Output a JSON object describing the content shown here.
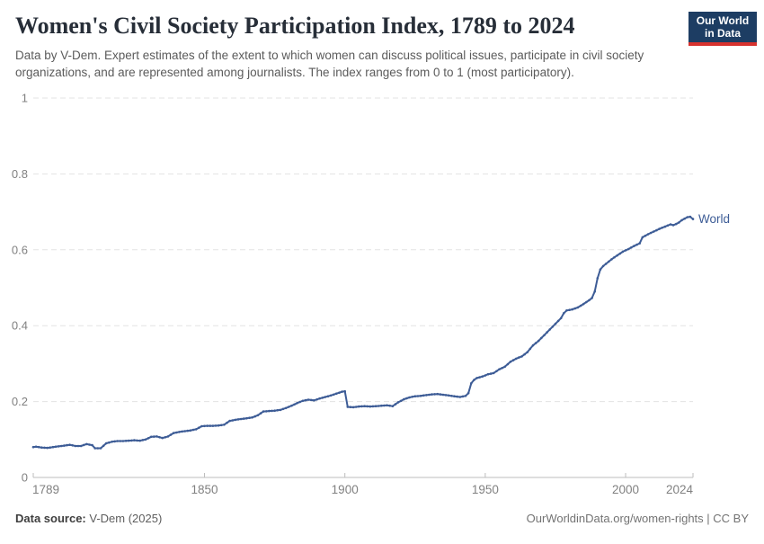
{
  "header": {
    "title": "Women's Civil Society Participation Index, 1789 to 2024",
    "subtitle": "Data by V-Dem. Expert estimates of the extent to which women can discuss political issues, participate in civil society organizations, and are represented among journalists. The index ranges from 0 to 1 (most participatory).",
    "logo_line1": "Our World",
    "logo_line2": "in Data"
  },
  "footer": {
    "source_label": "Data source:",
    "source_value": "V-Dem (2025)",
    "right_text": "OurWorldinData.org/women-rights | CC BY"
  },
  "colors": {
    "series_blue": "#3d5c96",
    "grid": "#e3e3e3",
    "axis": "#bdbdbd",
    "axis_label": "#818181",
    "logo_navy": "#1d3d63",
    "logo_red": "#d7322e"
  },
  "chart_data": {
    "type": "line",
    "title": "Women's Civil Society Participation Index, 1789 to 2024",
    "xlabel": "",
    "ylabel": "",
    "grid": "horizontal-dashed",
    "legend_position": "end-of-line",
    "x_axis": {
      "min": 1789,
      "max": 2024,
      "ticks": [
        1789,
        1850,
        1900,
        1950,
        2000,
        2024
      ],
      "tick_labels": [
        "1789",
        "1850",
        "1900",
        "1950",
        "2000",
        "2024"
      ]
    },
    "y_axis": {
      "min": 0,
      "max": 1,
      "ticks": [
        0,
        0.2,
        0.4,
        0.6,
        0.8,
        1
      ],
      "tick_labels": [
        "0",
        "0.2",
        "0.4",
        "0.6",
        "0.8",
        "1"
      ]
    },
    "series": [
      {
        "name": "World",
        "color": "#3d5c96",
        "points": [
          [
            1789,
            0.08
          ],
          [
            1790,
            0.081
          ],
          [
            1792,
            0.079
          ],
          [
            1794,
            0.078
          ],
          [
            1796,
            0.08
          ],
          [
            1798,
            0.082
          ],
          [
            1800,
            0.084
          ],
          [
            1802,
            0.086
          ],
          [
            1804,
            0.083
          ],
          [
            1806,
            0.083
          ],
          [
            1808,
            0.088
          ],
          [
            1810,
            0.085
          ],
          [
            1811,
            0.077
          ],
          [
            1813,
            0.077
          ],
          [
            1815,
            0.09
          ],
          [
            1817,
            0.094
          ],
          [
            1819,
            0.096
          ],
          [
            1821,
            0.096
          ],
          [
            1823,
            0.097
          ],
          [
            1825,
            0.098
          ],
          [
            1827,
            0.097
          ],
          [
            1829,
            0.1
          ],
          [
            1831,
            0.107
          ],
          [
            1833,
            0.108
          ],
          [
            1835,
            0.104
          ],
          [
            1837,
            0.108
          ],
          [
            1839,
            0.117
          ],
          [
            1841,
            0.12
          ],
          [
            1843,
            0.122
          ],
          [
            1845,
            0.124
          ],
          [
            1847,
            0.127
          ],
          [
            1849,
            0.135
          ],
          [
            1851,
            0.136
          ],
          [
            1853,
            0.136
          ],
          [
            1855,
            0.137
          ],
          [
            1857,
            0.139
          ],
          [
            1859,
            0.149
          ],
          [
            1861,
            0.152
          ],
          [
            1863,
            0.154
          ],
          [
            1865,
            0.156
          ],
          [
            1867,
            0.158
          ],
          [
            1869,
            0.164
          ],
          [
            1871,
            0.174
          ],
          [
            1873,
            0.175
          ],
          [
            1875,
            0.176
          ],
          [
            1877,
            0.178
          ],
          [
            1879,
            0.183
          ],
          [
            1881,
            0.189
          ],
          [
            1883,
            0.196
          ],
          [
            1885,
            0.202
          ],
          [
            1887,
            0.205
          ],
          [
            1889,
            0.203
          ],
          [
            1891,
            0.208
          ],
          [
            1893,
            0.212
          ],
          [
            1895,
            0.216
          ],
          [
            1897,
            0.221
          ],
          [
            1899,
            0.226
          ],
          [
            1900,
            0.227
          ],
          [
            1901,
            0.186
          ],
          [
            1903,
            0.185
          ],
          [
            1905,
            0.187
          ],
          [
            1907,
            0.188
          ],
          [
            1909,
            0.187
          ],
          [
            1911,
            0.188
          ],
          [
            1913,
            0.189
          ],
          [
            1915,
            0.19
          ],
          [
            1917,
            0.188
          ],
          [
            1919,
            0.198
          ],
          [
            1921,
            0.206
          ],
          [
            1923,
            0.211
          ],
          [
            1925,
            0.214
          ],
          [
            1927,
            0.215
          ],
          [
            1929,
            0.217
          ],
          [
            1931,
            0.219
          ],
          [
            1933,
            0.22
          ],
          [
            1935,
            0.218
          ],
          [
            1937,
            0.216
          ],
          [
            1939,
            0.214
          ],
          [
            1941,
            0.212
          ],
          [
            1943,
            0.215
          ],
          [
            1944,
            0.222
          ],
          [
            1945,
            0.248
          ],
          [
            1946,
            0.257
          ],
          [
            1947,
            0.262
          ],
          [
            1949,
            0.266
          ],
          [
            1951,
            0.272
          ],
          [
            1953,
            0.275
          ],
          [
            1955,
            0.285
          ],
          [
            1957,
            0.292
          ],
          [
            1959,
            0.305
          ],
          [
            1961,
            0.313
          ],
          [
            1963,
            0.319
          ],
          [
            1965,
            0.33
          ],
          [
            1967,
            0.348
          ],
          [
            1969,
            0.36
          ],
          [
            1971,
            0.375
          ],
          [
            1973,
            0.39
          ],
          [
            1975,
            0.405
          ],
          [
            1977,
            0.42
          ],
          [
            1978,
            0.433
          ],
          [
            1979,
            0.44
          ],
          [
            1981,
            0.443
          ],
          [
            1983,
            0.448
          ],
          [
            1985,
            0.457
          ],
          [
            1987,
            0.467
          ],
          [
            1988,
            0.473
          ],
          [
            1989,
            0.49
          ],
          [
            1990,
            0.525
          ],
          [
            1991,
            0.548
          ],
          [
            1992,
            0.557
          ],
          [
            1993,
            0.563
          ],
          [
            1995,
            0.575
          ],
          [
            1997,
            0.585
          ],
          [
            1999,
            0.595
          ],
          [
            2001,
            0.602
          ],
          [
            2003,
            0.61
          ],
          [
            2005,
            0.617
          ],
          [
            2006,
            0.633
          ],
          [
            2008,
            0.641
          ],
          [
            2010,
            0.648
          ],
          [
            2012,
            0.655
          ],
          [
            2014,
            0.661
          ],
          [
            2016,
            0.667
          ],
          [
            2017,
            0.665
          ],
          [
            2018,
            0.668
          ],
          [
            2019,
            0.672
          ],
          [
            2020,
            0.678
          ],
          [
            2021,
            0.682
          ],
          [
            2022,
            0.686
          ],
          [
            2023,
            0.687
          ],
          [
            2024,
            0.681
          ]
        ]
      }
    ]
  }
}
